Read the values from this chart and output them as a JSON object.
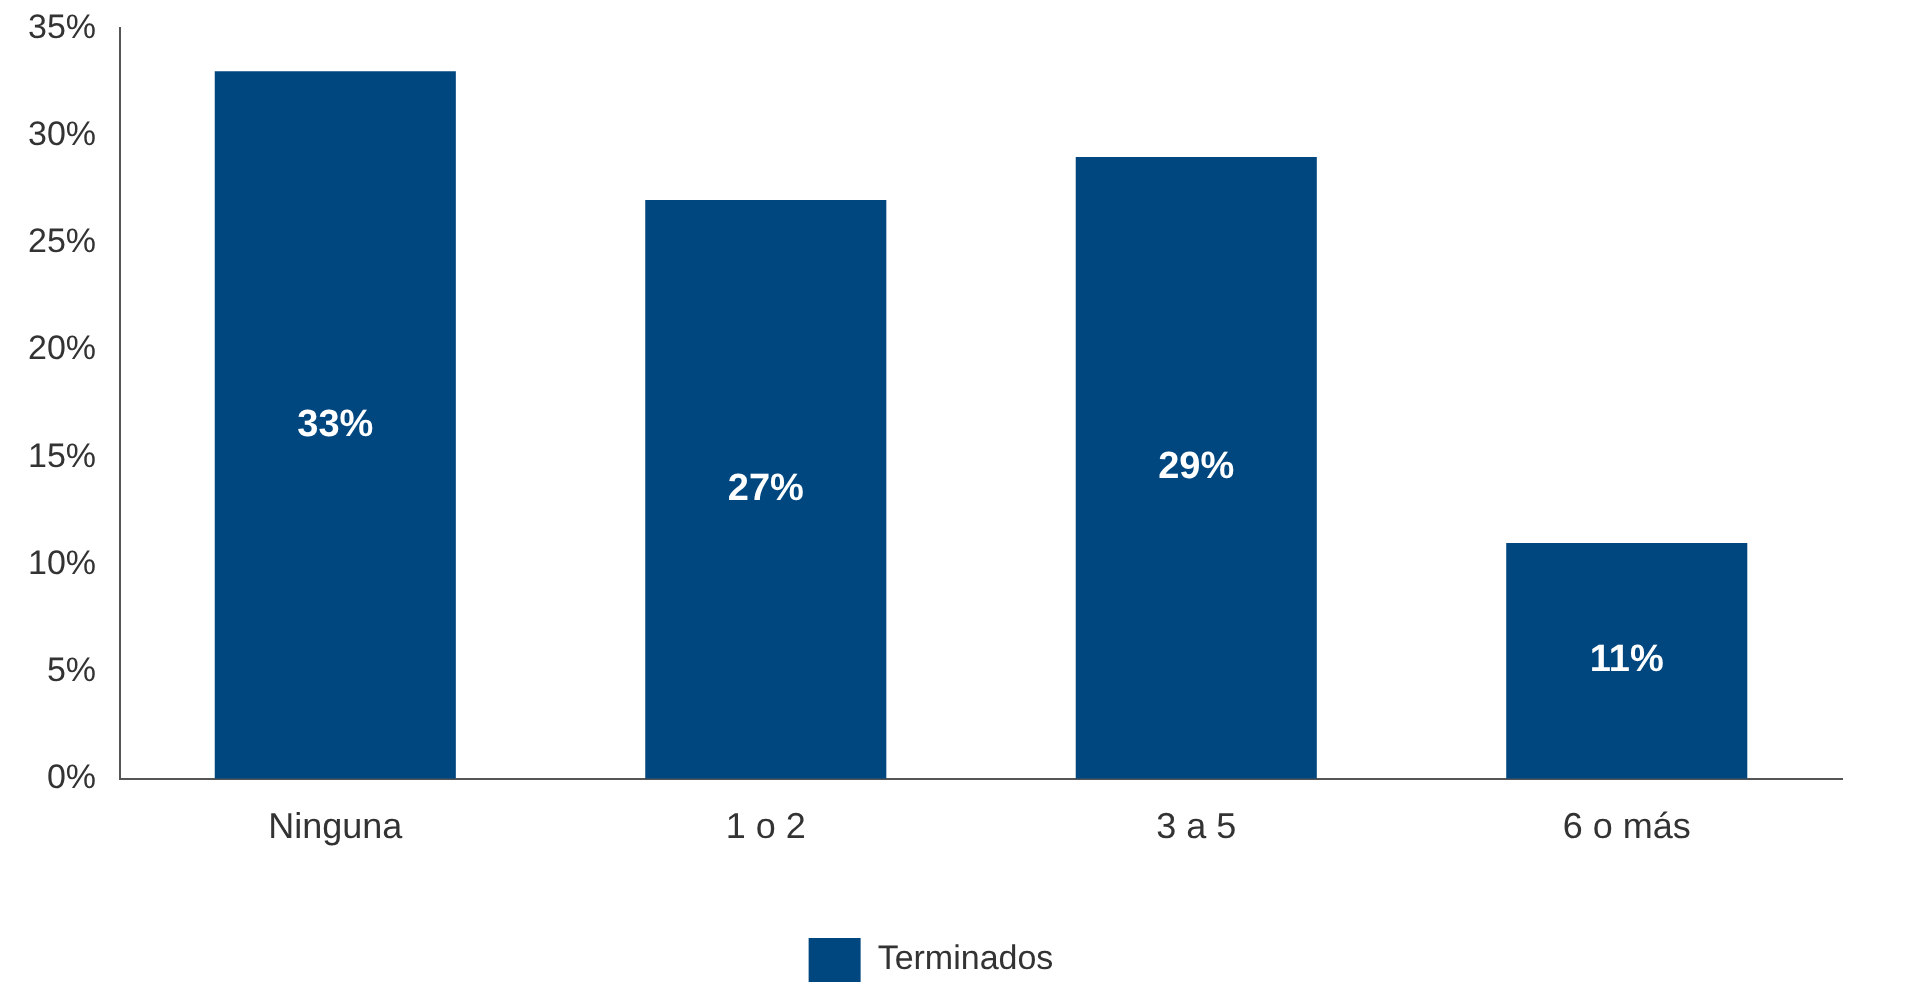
{
  "chart_data": {
    "type": "bar",
    "categories": [
      "Ninguna",
      "1 o 2",
      "3 a 5",
      "6 o más"
    ],
    "series": [
      {
        "name": "Terminados",
        "color": "#00467f",
        "values": [
          33,
          27,
          29,
          11
        ]
      }
    ],
    "ylim": [
      0,
      35
    ],
    "yticks": [
      {
        "value": 0,
        "label": "0%"
      },
      {
        "value": 5,
        "label": "5%"
      },
      {
        "value": 10,
        "label": "10%"
      },
      {
        "value": 15,
        "label": "15%"
      },
      {
        "value": 20,
        "label": "20%"
      },
      {
        "value": 25,
        "label": "25%"
      },
      {
        "value": 30,
        "label": "30%"
      },
      {
        "value": 35,
        "label": "35%"
      }
    ],
    "value_labels": [
      "33%",
      "27%",
      "29%",
      "11%"
    ],
    "grid": false,
    "legend": "bottom"
  }
}
